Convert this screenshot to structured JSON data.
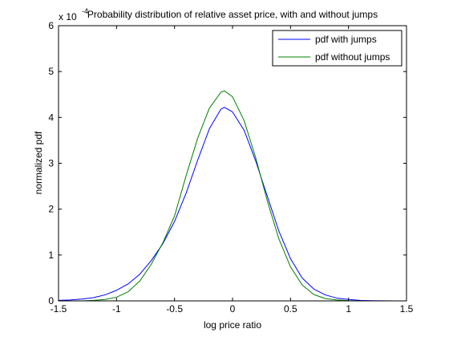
{
  "chart_data": {
    "type": "line",
    "title": "Probability distribution of relative asset price, with and without jumps",
    "xlabel": "log price ratio",
    "ylabel": "normalized pdf",
    "y_exponent_label": "x 10",
    "y_exponent_power": "-4",
    "xlim": [
      -1.5,
      1.5
    ],
    "ylim": [
      0,
      6
    ],
    "xticks": [
      -1.5,
      -1,
      -0.5,
      0,
      0.5,
      1,
      1.5
    ],
    "xtick_labels": [
      "-1.5",
      "-1",
      "-0.5",
      "0",
      "0.5",
      "1",
      "1.5"
    ],
    "yticks": [
      0,
      1,
      2,
      3,
      4,
      5,
      6
    ],
    "ytick_labels": [
      "0",
      "1",
      "2",
      "3",
      "4",
      "5",
      "6"
    ],
    "grid": false,
    "legend_position": "top-right",
    "series": [
      {
        "name": "pdf with jumps",
        "color": "#0000ff",
        "x": [
          -1.5,
          -1.4,
          -1.3,
          -1.2,
          -1.1,
          -1.0,
          -0.9,
          -0.8,
          -0.7,
          -0.6,
          -0.5,
          -0.4,
          -0.3,
          -0.2,
          -0.1,
          -0.07,
          0.0,
          0.1,
          0.2,
          0.3,
          0.4,
          0.5,
          0.6,
          0.7,
          0.8,
          0.9,
          1.0,
          1.1,
          1.2,
          1.3,
          1.4
        ],
        "y": [
          0.01,
          0.02,
          0.04,
          0.07,
          0.13,
          0.23,
          0.37,
          0.58,
          0.88,
          1.25,
          1.73,
          2.35,
          3.07,
          3.75,
          4.18,
          4.22,
          4.12,
          3.72,
          3.05,
          2.28,
          1.52,
          0.92,
          0.5,
          0.26,
          0.13,
          0.06,
          0.03,
          0.01,
          0.005,
          0.002,
          0.001
        ]
      },
      {
        "name": "pdf without jumps",
        "color": "#008000",
        "x": [
          -1.5,
          -1.4,
          -1.3,
          -1.2,
          -1.1,
          -1.0,
          -0.9,
          -0.8,
          -0.7,
          -0.6,
          -0.5,
          -0.4,
          -0.3,
          -0.2,
          -0.1,
          -0.07,
          0.0,
          0.1,
          0.2,
          0.3,
          0.4,
          0.5,
          0.6,
          0.7,
          0.8,
          0.9,
          1.0,
          1.1,
          1.2,
          1.3,
          1.4
        ],
        "y": [
          0.0,
          0.0,
          0.0,
          0.01,
          0.03,
          0.08,
          0.2,
          0.43,
          0.8,
          1.27,
          1.85,
          2.73,
          3.55,
          4.2,
          4.55,
          4.58,
          4.45,
          3.93,
          3.12,
          2.18,
          1.35,
          0.74,
          0.35,
          0.14,
          0.05,
          0.02,
          0.005,
          0.001,
          0.0,
          0.0,
          0.0
        ]
      }
    ]
  }
}
